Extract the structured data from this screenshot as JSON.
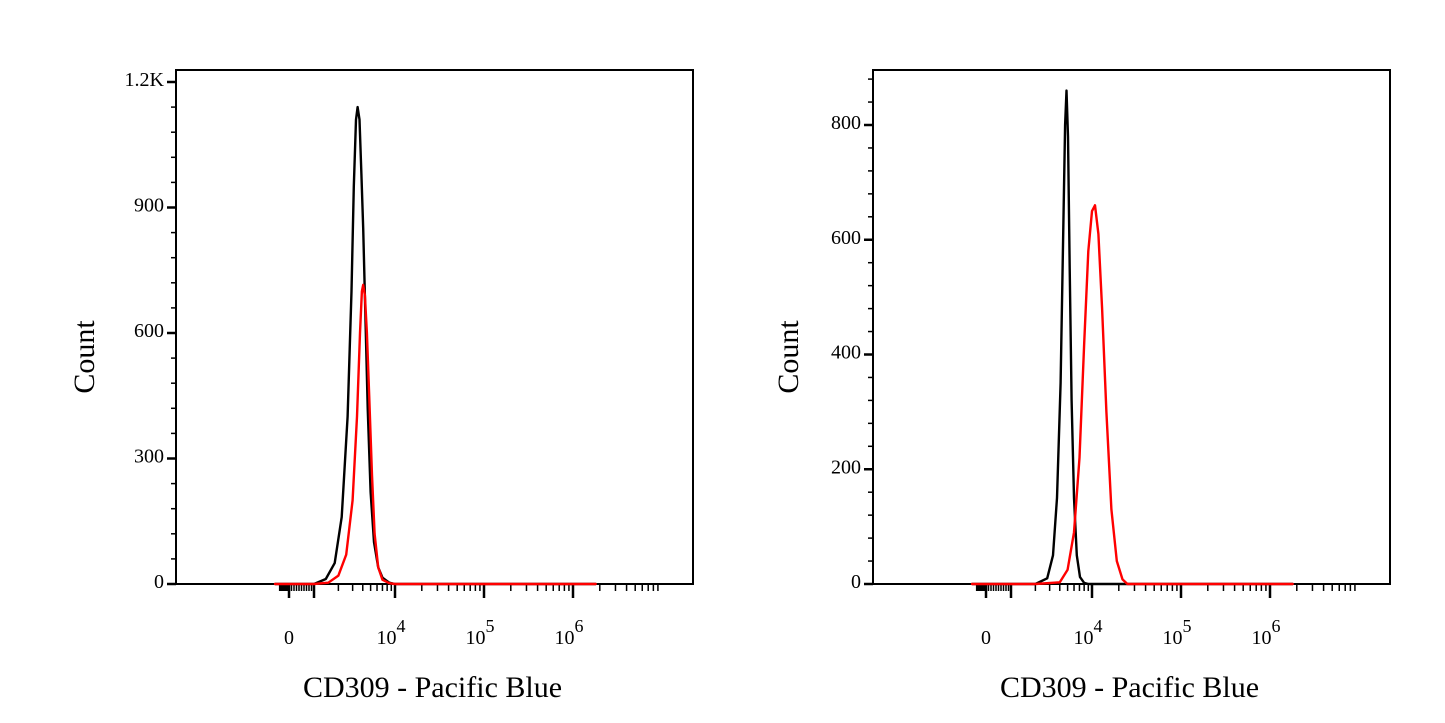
{
  "chart_data": [
    {
      "type": "line",
      "xlabel": "CD309 - Pacific Blue",
      "ylabel": "Count",
      "x_scale": "biexponential",
      "x_ticks": [
        {
          "label": "0",
          "value": 0
        },
        {
          "label": "10",
          "sup": "4",
          "value": 10000
        },
        {
          "label": "10",
          "sup": "5",
          "value": 100000
        },
        {
          "label": "10",
          "sup": "6",
          "value": 1000000
        }
      ],
      "y_ticks": [
        {
          "label": "0",
          "value": 0
        },
        {
          "label": "300",
          "value": 300
        },
        {
          "label": "600",
          "value": 600
        },
        {
          "label": "900",
          "value": 900
        },
        {
          "label": "1.2K",
          "value": 1200
        }
      ],
      "ylim": [
        0,
        1200
      ],
      "series": [
        {
          "color": "#000000",
          "points": [
            [
              -300,
              0
            ],
            [
              500,
              0
            ],
            [
              1000,
              0
            ],
            [
              1400,
              12
            ],
            [
              1800,
              50
            ],
            [
              2200,
              160
            ],
            [
              2600,
              400
            ],
            [
              2900,
              700
            ],
            [
              3100,
              950
            ],
            [
              3300,
              1110
            ],
            [
              3450,
              1140
            ],
            [
              3650,
              1110
            ],
            [
              3850,
              980
            ],
            [
              4050,
              850
            ],
            [
              4300,
              650
            ],
            [
              4600,
              420
            ],
            [
              5000,
              220
            ],
            [
              5500,
              100
            ],
            [
              6200,
              40
            ],
            [
              7000,
              15
            ],
            [
              8500,
              3
            ],
            [
              10000,
              0
            ],
            [
              1000000,
              0
            ],
            [
              1800000,
              0
            ]
          ]
        },
        {
          "color": "#ff0000",
          "points": [
            [
              -300,
              0
            ],
            [
              1000,
              0
            ],
            [
              1500,
              3
            ],
            [
              2000,
              20
            ],
            [
              2500,
              70
            ],
            [
              3000,
              200
            ],
            [
              3400,
              400
            ],
            [
              3700,
              600
            ],
            [
              3900,
              700
            ],
            [
              4050,
              715
            ],
            [
              4250,
              690
            ],
            [
              4500,
              600
            ],
            [
              4800,
              450
            ],
            [
              5200,
              260
            ],
            [
              5600,
              120
            ],
            [
              6200,
              40
            ],
            [
              7000,
              10
            ],
            [
              8500,
              2
            ],
            [
              10000,
              0
            ],
            [
              1000000,
              0
            ],
            [
              1800000,
              0
            ]
          ]
        }
      ]
    },
    {
      "type": "line",
      "xlabel": "CD309 - Pacific Blue",
      "ylabel": "Count",
      "x_scale": "biexponential",
      "x_ticks": [
        {
          "label": "0",
          "value": 0
        },
        {
          "label": "10",
          "sup": "4",
          "value": 10000
        },
        {
          "label": "10",
          "sup": "5",
          "value": 100000
        },
        {
          "label": "10",
          "sup": "6",
          "value": 1000000
        }
      ],
      "y_ticks": [
        {
          "label": "0",
          "value": 0
        },
        {
          "label": "200",
          "value": 200
        },
        {
          "label": "400",
          "value": 400
        },
        {
          "label": "600",
          "value": 600
        },
        {
          "label": "800",
          "value": 800
        }
      ],
      "ylim": [
        0,
        900
      ],
      "series": [
        {
          "color": "#000000",
          "points": [
            [
              -300,
              0
            ],
            [
              1000,
              0
            ],
            [
              2000,
              0
            ],
            [
              2800,
              10
            ],
            [
              3300,
              50
            ],
            [
              3700,
              150
            ],
            [
              4100,
              350
            ],
            [
              4400,
              600
            ],
            [
              4650,
              800
            ],
            [
              4850,
              860
            ],
            [
              5050,
              780
            ],
            [
              5300,
              550
            ],
            [
              5600,
              320
            ],
            [
              6000,
              150
            ],
            [
              6500,
              50
            ],
            [
              7100,
              12
            ],
            [
              8000,
              2
            ],
            [
              9000,
              0
            ],
            [
              1000000,
              0
            ],
            [
              1800000,
              0
            ]
          ]
        },
        {
          "color": "#ff0000",
          "points": [
            [
              -300,
              0
            ],
            [
              2000,
              0
            ],
            [
              4000,
              3
            ],
            [
              5000,
              25
            ],
            [
              6000,
              90
            ],
            [
              7000,
              220
            ],
            [
              8000,
              420
            ],
            [
              9000,
              580
            ],
            [
              10000,
              650
            ],
            [
              10800,
              660
            ],
            [
              11800,
              610
            ],
            [
              13000,
              480
            ],
            [
              14500,
              300
            ],
            [
              16500,
              130
            ],
            [
              19000,
              40
            ],
            [
              22000,
              8
            ],
            [
              25000,
              0
            ],
            [
              1000000,
              0
            ],
            [
              1800000,
              0
            ]
          ]
        }
      ]
    }
  ]
}
